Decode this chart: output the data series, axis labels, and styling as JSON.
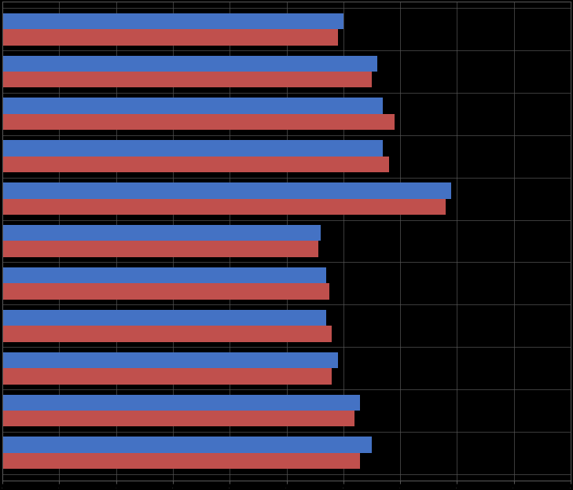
{
  "blue_values": [
    3.0,
    3.3,
    3.35,
    3.35,
    3.95,
    2.8,
    2.85,
    2.85,
    2.95,
    3.15,
    3.25
  ],
  "red_values": [
    2.95,
    3.25,
    3.45,
    3.4,
    3.9,
    2.78,
    2.88,
    2.9,
    2.9,
    3.1,
    3.15
  ],
  "blue_color": "#4472C4",
  "red_color": "#C0504D",
  "background_color": "#000000",
  "grid_color": "#555555",
  "xlim_max": 5.0,
  "bar_height": 0.38,
  "num_groups": 11
}
